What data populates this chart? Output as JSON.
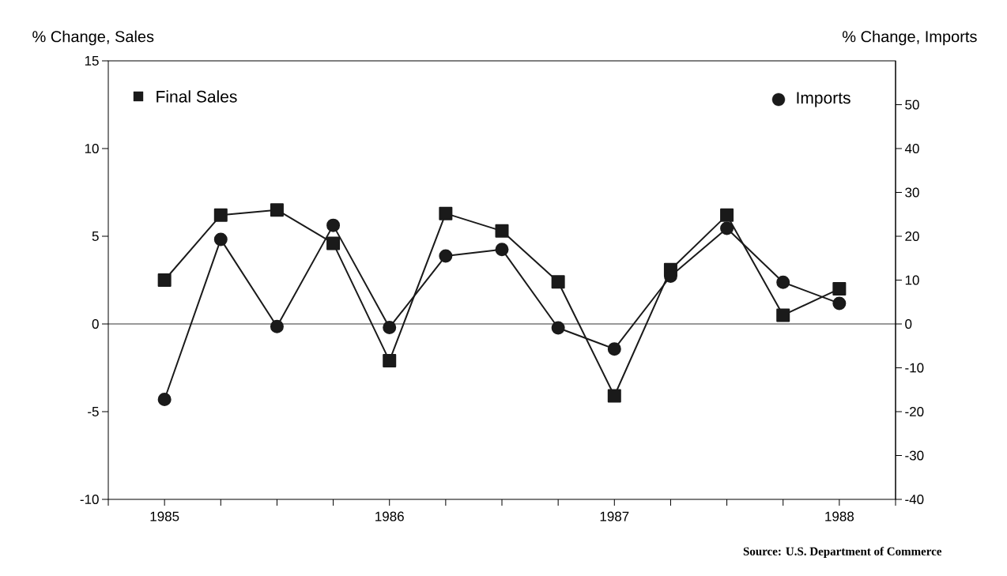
{
  "chart_data": {
    "type": "line",
    "x": [
      1985,
      1985.25,
      1985.5,
      1985.75,
      1986,
      1986.25,
      1986.5,
      1986.75,
      1987,
      1987.25,
      1987.5,
      1987.75,
      1988
    ],
    "series": [
      {
        "name": "Final Sales",
        "color": "#1a1a1a",
        "marker": "square",
        "values": [
          2.5,
          6.2,
          6.5,
          4.6,
          -2.1,
          6.3,
          5.3,
          2.4,
          -4.1,
          3.1,
          6.2,
          0.5,
          2.0
        ]
      },
      {
        "name": "Imports",
        "color": "#1a1a1a",
        "marker": "circle",
        "axis": "y2",
        "values": [
          -17.2,
          19.3,
          -0.6,
          22.5,
          -0.8,
          15.5,
          17.0,
          -0.9,
          -5.7,
          10.9,
          21.8,
          9.5,
          4.7
        ]
      }
    ],
    "xlim": [
      1984.75,
      1988.25
    ],
    "xticks": [
      {
        "value": 1984.75,
        "label": null
      },
      1985,
      {
        "value": 1985.25,
        "label": null
      },
      {
        "value": 1985.5,
        "label": null
      },
      {
        "value": 1985.75,
        "label": null
      },
      1986,
      {
        "value": 1986.25,
        "label": null
      },
      {
        "value": 1986.5,
        "label": null
      },
      {
        "value": 1986.75,
        "label": null
      },
      1987,
      {
        "value": 1987.25,
        "label": null
      },
      {
        "value": 1987.5,
        "label": null
      },
      {
        "value": 1987.75,
        "label": null
      },
      1988,
      {
        "value": 1988.25,
        "label": null
      }
    ],
    "ylim": [
      -10,
      15
    ],
    "yticks": [
      -10,
      -5,
      0,
      5,
      10,
      15
    ],
    "y2lim": [
      -40,
      60
    ],
    "y2ticks": [
      -40,
      -30,
      -20,
      -10,
      0,
      10,
      20,
      30,
      40,
      50
    ],
    "ylabel": "% Change, Sales",
    "y2label": "% Change, Imports",
    "ref_lines": [
      {
        "axis": "y",
        "value": 0
      }
    ],
    "legend": "top",
    "line_style": "solid",
    "annotations": [
      "Source: U.S. Department of Commerce"
    ]
  }
}
